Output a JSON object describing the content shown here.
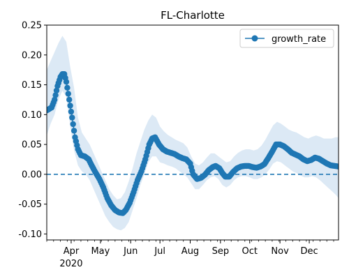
{
  "chart_data": {
    "type": "line",
    "title": "FL-Charlotte",
    "xlabel": "",
    "ylabel": "",
    "x_range": [
      "2020-03-07",
      "2020-12-31"
    ],
    "ylim": [
      -0.11,
      0.25
    ],
    "y_ticks": [
      "-0.10",
      "-0.05",
      "0.00",
      "0.05",
      "0.10",
      "0.15",
      "0.20",
      "0.25"
    ],
    "x_ticks": [
      {
        "date": "2020-04-01",
        "label": "Apr"
      },
      {
        "date": "2020-05-01",
        "label": "May"
      },
      {
        "date": "2020-06-01",
        "label": "Jun"
      },
      {
        "date": "2020-07-01",
        "label": "Jul"
      },
      {
        "date": "2020-08-01",
        "label": "Aug"
      },
      {
        "date": "2020-09-01",
        "label": "Sep"
      },
      {
        "date": "2020-10-01",
        "label": "Oct"
      },
      {
        "date": "2020-11-01",
        "label": "Nov"
      },
      {
        "date": "2020-12-01",
        "label": "Dec"
      }
    ],
    "year_label": "2020",
    "grid": false,
    "legend": {
      "position": "top-right",
      "entries": [
        "growth_rate"
      ]
    },
    "reference_line": {
      "y": 0.0,
      "style": "dashed"
    },
    "colors": {
      "series": "#1f77b4",
      "band": "#dce9f5"
    },
    "series": [
      {
        "name": "growth_rate",
        "points": [
          [
            "2020-03-07",
            0.107
          ],
          [
            "2020-03-12",
            0.112
          ],
          [
            "2020-03-15",
            0.125
          ],
          [
            "2020-03-18",
            0.148
          ],
          [
            "2020-03-21",
            0.163
          ],
          [
            "2020-03-23",
            0.168
          ],
          [
            "2020-03-25",
            0.168
          ],
          [
            "2020-03-27",
            0.155
          ],
          [
            "2020-03-30",
            0.125
          ],
          [
            "2020-04-02",
            0.095
          ],
          [
            "2020-04-05",
            0.062
          ],
          [
            "2020-04-08",
            0.042
          ],
          [
            "2020-04-11",
            0.032
          ],
          [
            "2020-04-15",
            0.03
          ],
          [
            "2020-04-19",
            0.025
          ],
          [
            "2020-04-22",
            0.015
          ],
          [
            "2020-04-26",
            0.003
          ],
          [
            "2020-04-30",
            -0.008
          ],
          [
            "2020-05-04",
            -0.022
          ],
          [
            "2020-05-08",
            -0.04
          ],
          [
            "2020-05-12",
            -0.052
          ],
          [
            "2020-05-16",
            -0.06
          ],
          [
            "2020-05-20",
            -0.064
          ],
          [
            "2020-05-24",
            -0.065
          ],
          [
            "2020-05-27",
            -0.06
          ],
          [
            "2020-05-31",
            -0.048
          ],
          [
            "2020-06-04",
            -0.03
          ],
          [
            "2020-06-08",
            -0.01
          ],
          [
            "2020-06-12",
            0.005
          ],
          [
            "2020-06-16",
            0.025
          ],
          [
            "2020-06-20",
            0.05
          ],
          [
            "2020-06-23",
            0.06
          ],
          [
            "2020-06-26",
            0.062
          ],
          [
            "2020-06-30",
            0.05
          ],
          [
            "2020-07-04",
            0.042
          ],
          [
            "2020-07-08",
            0.038
          ],
          [
            "2020-07-12",
            0.036
          ],
          [
            "2020-07-16",
            0.034
          ],
          [
            "2020-07-20",
            0.03
          ],
          [
            "2020-07-24",
            0.027
          ],
          [
            "2020-07-28",
            0.025
          ],
          [
            "2020-08-01",
            0.018
          ],
          [
            "2020-08-04",
            0.0
          ],
          [
            "2020-08-08",
            -0.008
          ],
          [
            "2020-08-12",
            -0.006
          ],
          [
            "2020-08-16",
            -0.001
          ],
          [
            "2020-08-20",
            0.007
          ],
          [
            "2020-08-24",
            0.012
          ],
          [
            "2020-08-27",
            0.014
          ],
          [
            "2020-08-31",
            0.01
          ],
          [
            "2020-09-03",
            0.002
          ],
          [
            "2020-09-06",
            -0.004
          ],
          [
            "2020-09-10",
            -0.004
          ],
          [
            "2020-09-14",
            0.004
          ],
          [
            "2020-09-18",
            0.01
          ],
          [
            "2020-09-22",
            0.013
          ],
          [
            "2020-09-26",
            0.014
          ],
          [
            "2020-09-30",
            0.014
          ],
          [
            "2020-10-04",
            0.012
          ],
          [
            "2020-10-08",
            0.011
          ],
          [
            "2020-10-12",
            0.013
          ],
          [
            "2020-10-16",
            0.017
          ],
          [
            "2020-10-20",
            0.027
          ],
          [
            "2020-10-24",
            0.038
          ],
          [
            "2020-10-28",
            0.05
          ],
          [
            "2020-11-01",
            0.05
          ],
          [
            "2020-11-05",
            0.047
          ],
          [
            "2020-11-09",
            0.042
          ],
          [
            "2020-11-13",
            0.036
          ],
          [
            "2020-11-17",
            0.033
          ],
          [
            "2020-11-21",
            0.03
          ],
          [
            "2020-11-25",
            0.025
          ],
          [
            "2020-11-29",
            0.022
          ],
          [
            "2020-12-03",
            0.024
          ],
          [
            "2020-12-07",
            0.028
          ],
          [
            "2020-12-11",
            0.026
          ],
          [
            "2020-12-15",
            0.022
          ],
          [
            "2020-12-19",
            0.018
          ],
          [
            "2020-12-23",
            0.015
          ],
          [
            "2020-12-27",
            0.014
          ],
          [
            "2020-12-31",
            0.013
          ]
        ]
      }
    ],
    "confidence_band": [
      [
        "2020-03-07",
        0.065,
        0.175
      ],
      [
        "2020-03-11",
        0.085,
        0.19
      ],
      [
        "2020-03-15",
        0.1,
        0.205
      ],
      [
        "2020-03-19",
        0.125,
        0.22
      ],
      [
        "2020-03-23",
        0.14,
        0.232
      ],
      [
        "2020-03-27",
        0.13,
        0.222
      ],
      [
        "2020-03-31",
        0.08,
        0.18
      ],
      [
        "2020-04-04",
        0.04,
        0.145
      ],
      [
        "2020-04-08",
        0.015,
        0.095
      ],
      [
        "2020-04-12",
        0.005,
        0.07
      ],
      [
        "2020-04-16",
        0.0,
        0.06
      ],
      [
        "2020-04-20",
        -0.01,
        0.05
      ],
      [
        "2020-04-24",
        -0.025,
        0.035
      ],
      [
        "2020-04-28",
        -0.04,
        0.02
      ],
      [
        "2020-05-02",
        -0.055,
        0.005
      ],
      [
        "2020-05-06",
        -0.07,
        -0.01
      ],
      [
        "2020-05-10",
        -0.08,
        -0.025
      ],
      [
        "2020-05-14",
        -0.088,
        -0.035
      ],
      [
        "2020-05-18",
        -0.092,
        -0.042
      ],
      [
        "2020-05-22",
        -0.094,
        -0.04
      ],
      [
        "2020-05-26",
        -0.09,
        -0.03
      ],
      [
        "2020-05-30",
        -0.08,
        -0.012
      ],
      [
        "2020-06-03",
        -0.06,
        0.01
      ],
      [
        "2020-06-07",
        -0.04,
        0.035
      ],
      [
        "2020-06-11",
        -0.018,
        0.055
      ],
      [
        "2020-06-15",
        0.0,
        0.075
      ],
      [
        "2020-06-19",
        0.02,
        0.09
      ],
      [
        "2020-06-23",
        0.03,
        0.1
      ],
      [
        "2020-06-27",
        0.03,
        0.095
      ],
      [
        "2020-07-01",
        0.02,
        0.08
      ],
      [
        "2020-07-05",
        0.018,
        0.072
      ],
      [
        "2020-07-09",
        0.015,
        0.066
      ],
      [
        "2020-07-13",
        0.013,
        0.062
      ],
      [
        "2020-07-17",
        0.01,
        0.058
      ],
      [
        "2020-07-21",
        0.005,
        0.055
      ],
      [
        "2020-07-25",
        0.0,
        0.052
      ],
      [
        "2020-07-29",
        -0.005,
        0.045
      ],
      [
        "2020-08-02",
        -0.015,
        0.03
      ],
      [
        "2020-08-06",
        -0.025,
        0.018
      ],
      [
        "2020-08-10",
        -0.025,
        0.015
      ],
      [
        "2020-08-14",
        -0.018,
        0.02
      ],
      [
        "2020-08-18",
        -0.01,
        0.028
      ],
      [
        "2020-08-22",
        -0.005,
        0.035
      ],
      [
        "2020-08-26",
        -0.003,
        0.035
      ],
      [
        "2020-08-30",
        -0.008,
        0.03
      ],
      [
        "2020-09-03",
        -0.018,
        0.025
      ],
      [
        "2020-09-07",
        -0.022,
        0.02
      ],
      [
        "2020-09-11",
        -0.018,
        0.022
      ],
      [
        "2020-09-15",
        -0.01,
        0.03
      ],
      [
        "2020-09-19",
        -0.005,
        0.036
      ],
      [
        "2020-09-23",
        -0.003,
        0.04
      ],
      [
        "2020-09-27",
        -0.003,
        0.042
      ],
      [
        "2020-10-01",
        -0.005,
        0.042
      ],
      [
        "2020-10-05",
        -0.008,
        0.04
      ],
      [
        "2020-10-09",
        -0.008,
        0.042
      ],
      [
        "2020-10-13",
        -0.005,
        0.048
      ],
      [
        "2020-10-17",
        0.0,
        0.058
      ],
      [
        "2020-10-21",
        0.008,
        0.07
      ],
      [
        "2020-10-25",
        0.018,
        0.082
      ],
      [
        "2020-10-29",
        0.022,
        0.088
      ],
      [
        "2020-11-02",
        0.02,
        0.085
      ],
      [
        "2020-11-06",
        0.015,
        0.08
      ],
      [
        "2020-11-10",
        0.01,
        0.075
      ],
      [
        "2020-11-14",
        0.005,
        0.072
      ],
      [
        "2020-11-18",
        0.002,
        0.07
      ],
      [
        "2020-11-22",
        -0.002,
        0.066
      ],
      [
        "2020-11-26",
        -0.005,
        0.062
      ],
      [
        "2020-11-30",
        -0.005,
        0.06
      ],
      [
        "2020-12-04",
        -0.003,
        0.063
      ],
      [
        "2020-12-08",
        -0.005,
        0.065
      ],
      [
        "2020-12-12",
        -0.01,
        0.063
      ],
      [
        "2020-12-16",
        -0.016,
        0.06
      ],
      [
        "2020-12-20",
        -0.022,
        0.06
      ],
      [
        "2020-12-24",
        -0.028,
        0.06
      ],
      [
        "2020-12-28",
        -0.034,
        0.062
      ],
      [
        "2020-12-31",
        -0.04,
        0.062
      ]
    ]
  }
}
